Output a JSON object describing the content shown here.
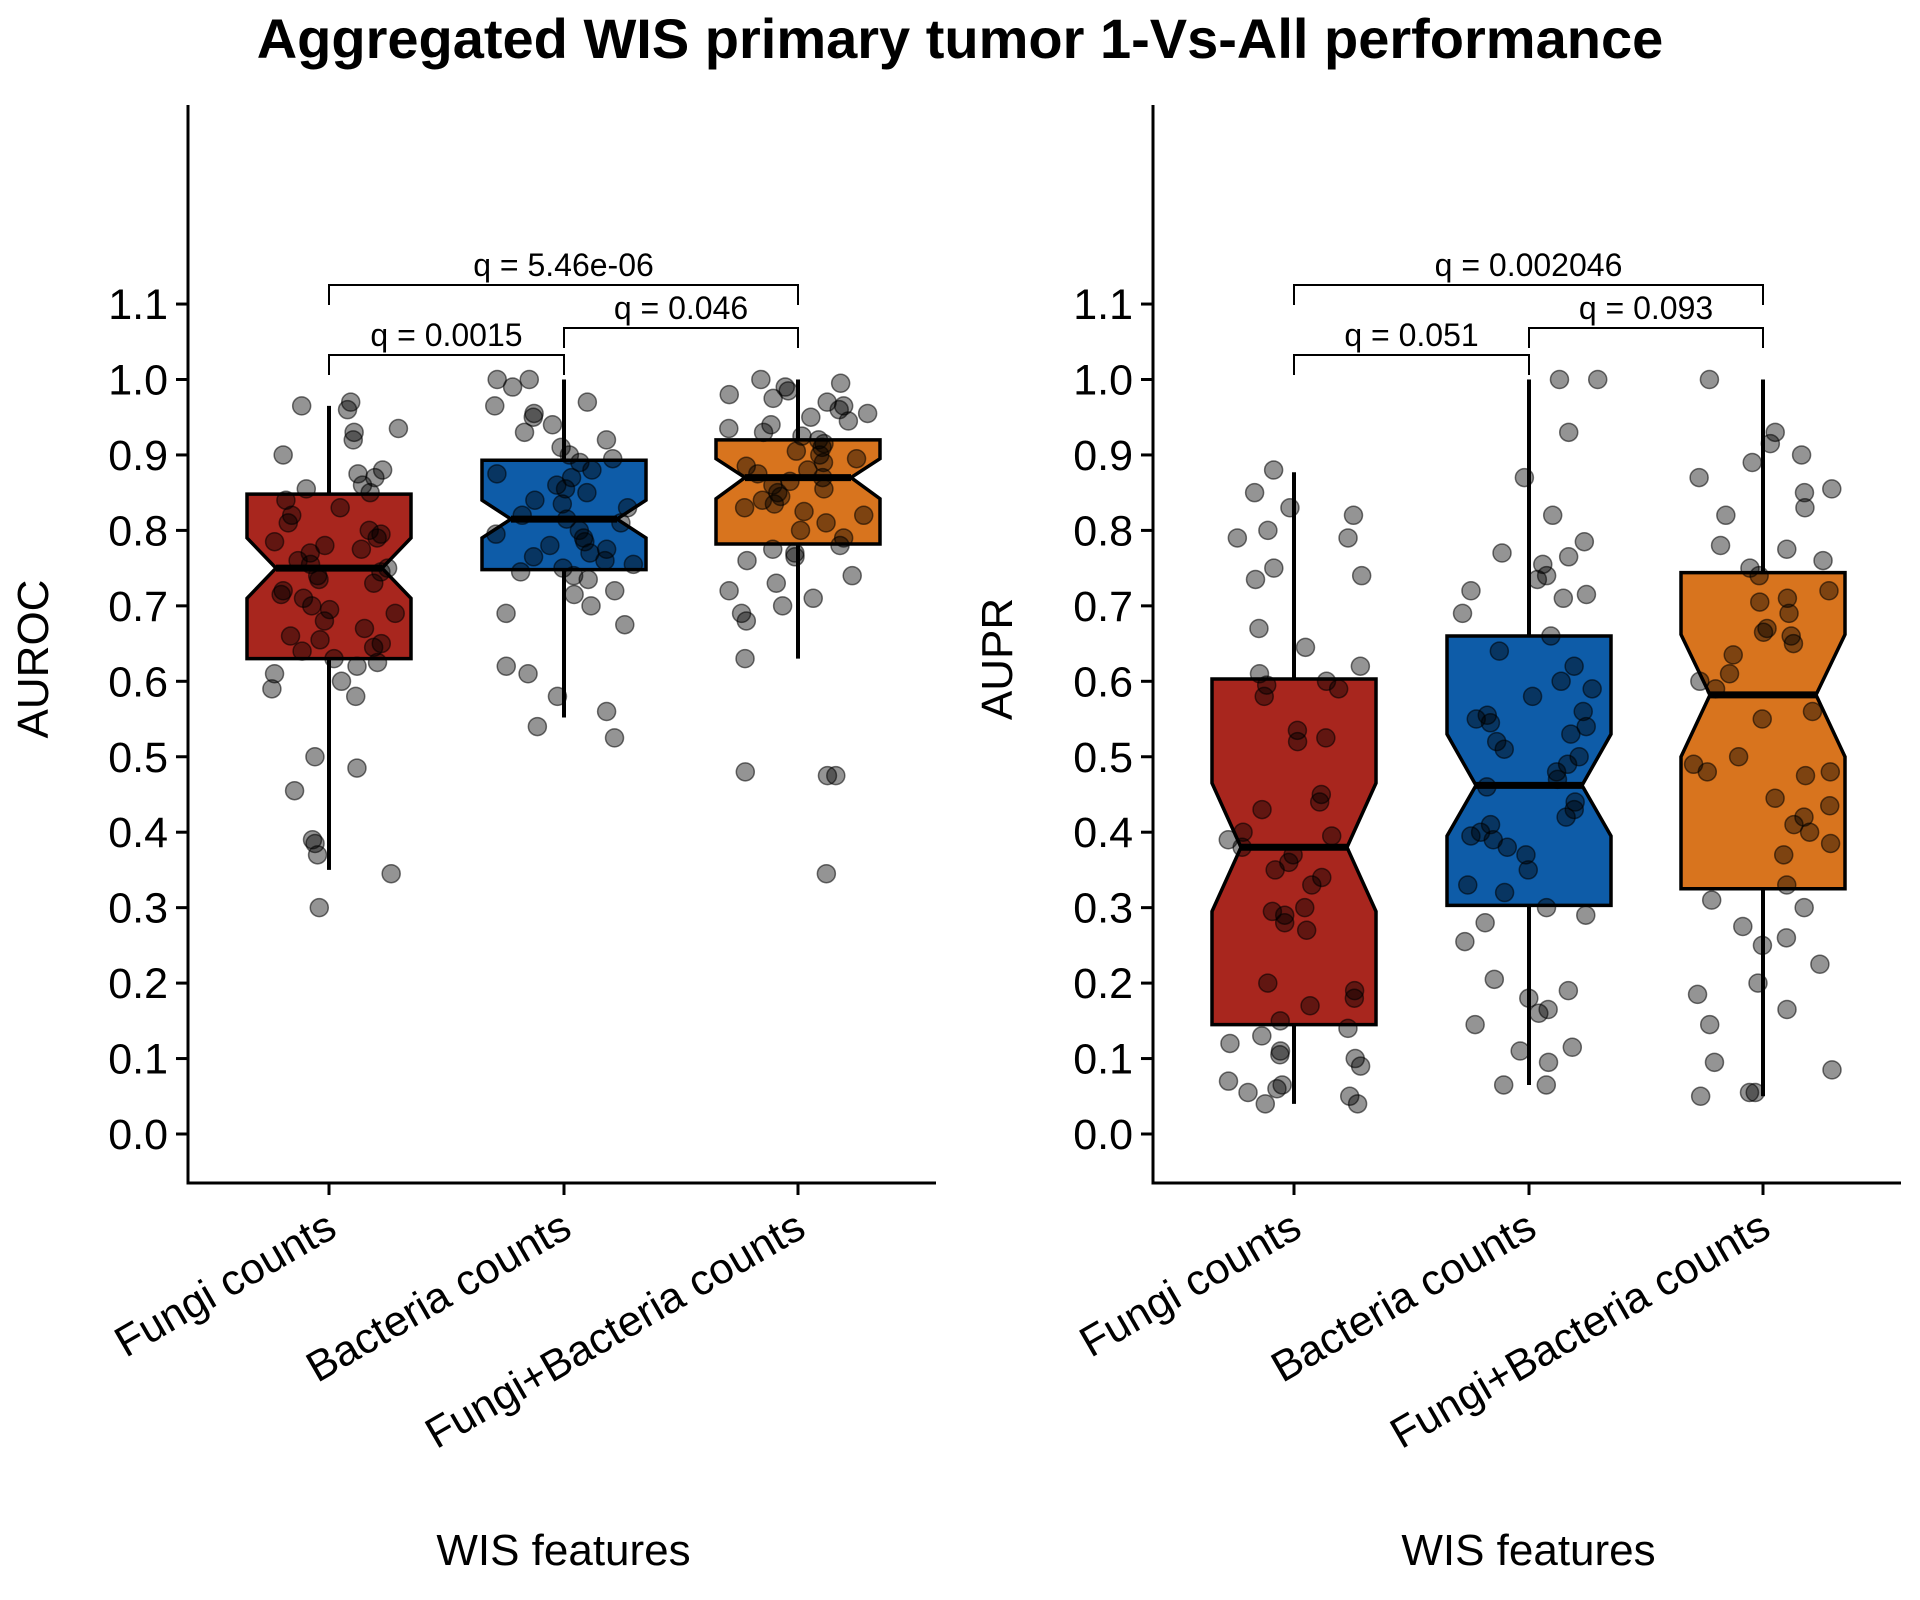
{
  "title": "Aggregated WIS primary tumor 1-Vs-All performance",
  "colors": {
    "Fungi counts": "#A8261E",
    "Bacteria counts": "#0E5CA8",
    "Fungi+Bacteria counts": "#D8741E",
    "points": "#000000",
    "axis": "#000000"
  },
  "chart_data": [
    {
      "type": "boxplot",
      "panel": "left",
      "xlabel": "WIS features",
      "ylabel": "AUROC",
      "yticks": [
        "0.0",
        "0.1",
        "0.2",
        "0.3",
        "0.4",
        "0.5",
        "0.6",
        "0.7",
        "0.8",
        "0.9",
        "1.0",
        "1.1"
      ],
      "ylim": [
        -0.065,
        1.36
      ],
      "categories": [
        "Fungi counts",
        "Bacteria counts",
        "Fungi+Bacteria counts"
      ],
      "boxes": [
        {
          "q1": 0.63,
          "median": 0.75,
          "q3": 0.848,
          "whisker_low": 0.35,
          "whisker_high": 0.965,
          "notch_low": 0.71,
          "notch_high": 0.79
        },
        {
          "q1": 0.748,
          "median": 0.815,
          "q3": 0.893,
          "whisker_low": 0.552,
          "whisker_high": 1.0,
          "notch_low": 0.79,
          "notch_high": 0.84
        },
        {
          "q1": 0.782,
          "median": 0.87,
          "q3": 0.92,
          "whisker_low": 0.63,
          "whisker_high": 1.0,
          "notch_low": 0.842,
          "notch_high": 0.895
        }
      ],
      "points": [
        [
          0.97,
          0.965,
          0.96,
          0.935,
          0.93,
          0.92,
          0.9,
          0.88,
          0.875,
          0.87,
          0.86,
          0.855,
          0.85,
          0.84,
          0.83,
          0.82,
          0.81,
          0.8,
          0.795,
          0.79,
          0.785,
          0.78,
          0.775,
          0.77,
          0.76,
          0.755,
          0.75,
          0.745,
          0.74,
          0.735,
          0.73,
          0.72,
          0.715,
          0.71,
          0.7,
          0.695,
          0.69,
          0.68,
          0.67,
          0.66,
          0.655,
          0.65,
          0.645,
          0.64,
          0.63,
          0.625,
          0.62,
          0.61,
          0.6,
          0.59,
          0.58,
          0.5,
          0.485,
          0.455,
          0.39,
          0.385,
          0.37,
          0.345,
          0.3
        ],
        [
          1.0,
          1.0,
          0.99,
          0.97,
          0.965,
          0.955,
          0.95,
          0.94,
          0.93,
          0.92,
          0.91,
          0.9,
          0.895,
          0.89,
          0.88,
          0.875,
          0.87,
          0.86,
          0.855,
          0.85,
          0.84,
          0.835,
          0.83,
          0.82,
          0.815,
          0.81,
          0.8,
          0.795,
          0.79,
          0.785,
          0.78,
          0.775,
          0.77,
          0.765,
          0.76,
          0.755,
          0.75,
          0.745,
          0.74,
          0.735,
          0.72,
          0.715,
          0.7,
          0.69,
          0.675,
          0.62,
          0.61,
          0.58,
          0.56,
          0.54,
          0.525
        ],
        [
          1.0,
          0.995,
          0.99,
          0.985,
          0.98,
          0.975,
          0.97,
          0.965,
          0.96,
          0.955,
          0.95,
          0.945,
          0.94,
          0.935,
          0.93,
          0.925,
          0.92,
          0.915,
          0.91,
          0.905,
          0.9,
          0.895,
          0.89,
          0.885,
          0.88,
          0.875,
          0.87,
          0.865,
          0.86,
          0.855,
          0.85,
          0.845,
          0.84,
          0.835,
          0.83,
          0.825,
          0.82,
          0.81,
          0.8,
          0.79,
          0.78,
          0.775,
          0.77,
          0.765,
          0.76,
          0.74,
          0.73,
          0.72,
          0.71,
          0.7,
          0.69,
          0.68,
          0.63,
          0.48,
          0.475,
          0.475,
          0.345
        ]
      ],
      "comparisons": [
        {
          "from": 0,
          "to": 2,
          "label": "q = 5.46e-06",
          "tier": 2
        },
        {
          "from": 0,
          "to": 1,
          "label": "q = 0.0015",
          "tier": 0
        },
        {
          "from": 1,
          "to": 2,
          "label": "q = 0.046",
          "tier": 1
        }
      ]
    },
    {
      "type": "boxplot",
      "panel": "right",
      "xlabel": "WIS features",
      "ylabel": "AUPR",
      "yticks": [
        "0.0",
        "0.1",
        "0.2",
        "0.3",
        "0.4",
        "0.5",
        "0.6",
        "0.7",
        "0.8",
        "0.9",
        "1.0",
        "1.1"
      ],
      "ylim": [
        -0.065,
        1.36
      ],
      "categories": [
        "Fungi counts",
        "Bacteria counts",
        "Fungi+Bacteria counts"
      ],
      "boxes": [
        {
          "q1": 0.145,
          "median": 0.38,
          "q3": 0.603,
          "whisker_low": 0.04,
          "whisker_high": 0.877,
          "notch_low": 0.295,
          "notch_high": 0.465
        },
        {
          "q1": 0.303,
          "median": 0.462,
          "q3": 0.66,
          "whisker_low": 0.065,
          "whisker_high": 1.0,
          "notch_low": 0.395,
          "notch_high": 0.53
        },
        {
          "q1": 0.325,
          "median": 0.582,
          "q3": 0.744,
          "whisker_low": 0.05,
          "whisker_high": 1.0,
          "notch_low": 0.5,
          "notch_high": 0.662
        }
      ],
      "points": [
        [
          0.88,
          0.85,
          0.83,
          0.82,
          0.8,
          0.79,
          0.79,
          0.75,
          0.74,
          0.735,
          0.67,
          0.645,
          0.62,
          0.61,
          0.6,
          0.595,
          0.59,
          0.58,
          0.535,
          0.525,
          0.52,
          0.45,
          0.44,
          0.43,
          0.4,
          0.395,
          0.39,
          0.38,
          0.37,
          0.36,
          0.35,
          0.34,
          0.33,
          0.3,
          0.295,
          0.29,
          0.28,
          0.27,
          0.2,
          0.19,
          0.18,
          0.17,
          0.15,
          0.14,
          0.13,
          0.12,
          0.11,
          0.105,
          0.1,
          0.09,
          0.07,
          0.065,
          0.06,
          0.055,
          0.05,
          0.04,
          0.04
        ],
        [
          1.0,
          1.0,
          0.93,
          0.87,
          0.82,
          0.785,
          0.77,
          0.765,
          0.755,
          0.74,
          0.735,
          0.72,
          0.715,
          0.71,
          0.69,
          0.66,
          0.64,
          0.62,
          0.6,
          0.59,
          0.58,
          0.56,
          0.555,
          0.55,
          0.545,
          0.54,
          0.53,
          0.52,
          0.51,
          0.5,
          0.49,
          0.48,
          0.47,
          0.46,
          0.44,
          0.43,
          0.42,
          0.41,
          0.4,
          0.395,
          0.39,
          0.38,
          0.37,
          0.35,
          0.33,
          0.32,
          0.3,
          0.29,
          0.28,
          0.255,
          0.205,
          0.19,
          0.18,
          0.165,
          0.16,
          0.145,
          0.115,
          0.11,
          0.095,
          0.065,
          0.065
        ],
        [
          1.0,
          0.93,
          0.915,
          0.9,
          0.89,
          0.87,
          0.855,
          0.85,
          0.83,
          0.82,
          0.78,
          0.775,
          0.76,
          0.75,
          0.74,
          0.72,
          0.71,
          0.705,
          0.69,
          0.67,
          0.665,
          0.66,
          0.65,
          0.635,
          0.61,
          0.6,
          0.59,
          0.56,
          0.55,
          0.5,
          0.49,
          0.48,
          0.48,
          0.475,
          0.445,
          0.435,
          0.42,
          0.41,
          0.4,
          0.385,
          0.37,
          0.33,
          0.31,
          0.3,
          0.275,
          0.26,
          0.25,
          0.225,
          0.2,
          0.185,
          0.165,
          0.145,
          0.095,
          0.085,
          0.055,
          0.055,
          0.05
        ]
      ],
      "comparisons": [
        {
          "from": 0,
          "to": 2,
          "label": "q = 0.002046",
          "tier": 2
        },
        {
          "from": 0,
          "to": 1,
          "label": "q = 0.051",
          "tier": 0
        },
        {
          "from": 1,
          "to": 2,
          "label": "q = 0.093",
          "tier": 1
        }
      ]
    }
  ]
}
